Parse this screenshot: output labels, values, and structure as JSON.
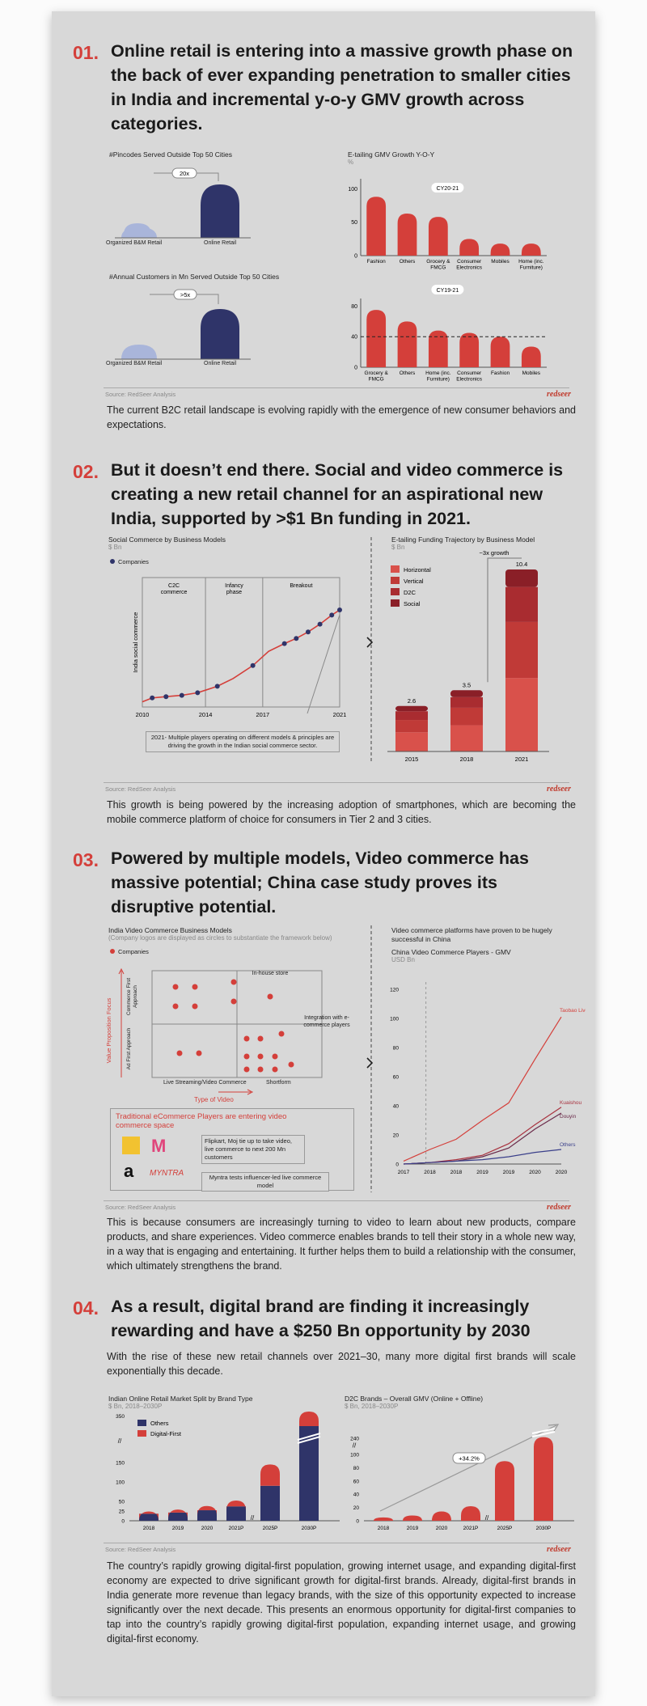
{
  "s1": {
    "num": "01.",
    "heading": "Online retail is entering into a massive growth phase on the back of ever expanding penetration to smaller cities in India and incremental y-o-y GMV growth across categories.",
    "pin_title": "#Pincodes Served Outside Top 50 Cities",
    "pin_mult": "20x",
    "cust_title": "#Annual Customers in Mn Served Outside Top 50 Cities",
    "cust_mult": ">5x",
    "lbl_bm": "Organized B&M Retail",
    "lbl_online": "Online Retail",
    "gmv_title": "E-tailing GMV Growth Y-O-Y",
    "gmv_unit": "%",
    "source": "Source: RedSeer Analysis",
    "brand": "redseer",
    "para": "The current B2C retail landscape is evolving rapidly with the emergence of new consumer behaviors and expectations."
  },
  "s2": {
    "num": "02.",
    "heading": "But it doesn’t end there. Social and video commerce is creating a new retail channel for an aspirational new India, supported by >$1 Bn funding in 2021.",
    "soc_title": "Social Commerce by Business Models",
    "soc_unit": "$ Bn",
    "legend": "Companies",
    "phase1": "C2C commerce",
    "phase2": "Infancy phase",
    "phase3": "Breakout",
    "yaxis": "India social commerce",
    "note": "2021- Multiple players operating on different models & principles are driving the growth in the Indian social commerce sector.",
    "fund_title": "E-tailing Funding Trajectory by Business Model",
    "fund_unit": "$ Bn",
    "growth": "~3x growth",
    "source": "Source: RedSeer Analysis",
    "brand": "redseer",
    "para": "This growth is being powered by the increasing adoption of smartphones, which are becoming the mobile commerce platform of choice for consumers in Tier 2 and 3 cities."
  },
  "s3": {
    "num": "03.",
    "heading": "Powered by multiple models, Video commerce has massive potential;  China case study proves its disruptive potential.",
    "vm_title": "India Video Commerce Business Models",
    "vm_sub": "(Company logos are  displayed  as circles to substantiate the framework below)",
    "legend": "Companies",
    "q_inhouse": "In-house store",
    "q_integ": "Integration with e-commerce players",
    "y_outer": "Value Proposition Focus",
    "y_top": "Commerce First Approach",
    "y_bot": "Ad First Approach",
    "x_left": "Live Streaming/Video Commerce",
    "x_right": "Shortform",
    "x_outer": "Type of Video",
    "trad_title": "Traditional eCommerce Players are entering video commerce space",
    "trad_n1": "Flipkart, Moj tie up to take video, live commerce to next 200 Mn customers",
    "trad_n2": "Myntra tests influencer-led live commerce model",
    "logo_m": "M",
    "logo_a": "a",
    "logo_myn": "MYNTRA",
    "cn_pre": "Video commerce platforms have proven to be hugely successful in China",
    "cn_title": "China Video Commerce Players - GMV",
    "cn_unit": "USD Bn",
    "source": "Source: RedSeer Analysis",
    "brand": "redseer",
    "para": "This is because consumers are increasingly turning to video to learn about new products, compare products, and share experiences. Video commerce enables brands to tell their story in a whole new way, in a way that is engaging and entertaining. It further helps them to build a relationship with the consumer, which ultimately strengthens the brand."
  },
  "s4": {
    "num": "04.",
    "heading": "As a result, digital brand are finding it increasingly rewarding and have a $250 Bn opportunity by 2030",
    "intro": "With the rise of these new retail channels over 2021–30, many more digital first brands will scale exponentially this decade.",
    "split_title": "Indian Online Retail Market Split by Brand Type",
    "split_unit": "$ Bn, 2018–2030P",
    "d2c_title": "D2C Brands – Overall GMV (Online + Offline)",
    "d2c_unit": "$ Bn, 2018–2030P",
    "cagr": "+34.2%",
    "source": "Source: RedSeer Analysis",
    "brand": "redseer",
    "para": "The country’s rapidly growing digital-first population, growing internet usage, and expanding digital-first economy are expected to drive significant growth for digital-first brands. Already, digital-first brands in India generate more revenue than legacy brands, with the size of this opportunity expected to increase significantly over the next decade. This presents an enormous opportunity for digital-first companies to tap into the country’s rapidly growing digital-first population, expanding internet usage, and growing digital-first economy."
  },
  "colors": {
    "red": "#d43f3a",
    "navy": "#2f3469",
    "lightblue": "#a9b5da"
  },
  "chart_data": [
    {
      "id": "gmv1",
      "type": "bar",
      "title": "E-tailing GMV Growth Y-O-Y",
      "ylabel": "%",
      "series_label": "CY20-21",
      "categories": [
        "Fashion",
        "Others",
        "Grocery & FMCG",
        "Consumer Electronics",
        "Mobiles",
        "Home (inc. Furniture)"
      ],
      "values": [
        88,
        63,
        58,
        25,
        18,
        18
      ],
      "yticks": [
        0,
        50,
        100
      ],
      "ylim": [
        0,
        115
      ]
    },
    {
      "id": "gmv2",
      "type": "bar",
      "series_label": "CY19-21",
      "categories": [
        "Grocery & FMCG",
        "Others",
        "Home (inc. Furniture)",
        "Consumer Electronics",
        "Fashion",
        "Mobiles"
      ],
      "values": [
        75,
        60,
        48,
        45,
        40,
        27
      ],
      "yticks": [
        0,
        40,
        80
      ],
      "ylim": [
        0,
        90
      ],
      "reference_line": 40
    },
    {
      "id": "social",
      "type": "line",
      "title": "Social Commerce by Business Models",
      "ylabel": "India social commerce",
      "xticks": [
        "2010",
        "2014",
        "2017",
        "2021"
      ],
      "phases": [
        "C2C commerce",
        "Infancy phase",
        "Breakout"
      ]
    },
    {
      "id": "funding",
      "type": "bar",
      "title": "E-tailing Funding Trajectory by Business Model",
      "ylabel": "$ Bn",
      "categories": [
        "2015",
        "2018",
        "2021"
      ],
      "totals": [
        2.6,
        3.5,
        10.4
      ],
      "series": [
        {
          "name": "Horizontal",
          "values": [
            1.1,
            1.5,
            4.2
          ]
        },
        {
          "name": "Vertical",
          "values": [
            0.7,
            1.0,
            3.2
          ]
        },
        {
          "name": "D2C",
          "values": [
            0.5,
            0.6,
            2.0
          ]
        },
        {
          "name": "Social",
          "values": [
            0.3,
            0.4,
            1.0
          ]
        }
      ],
      "annotation": "~3x growth"
    },
    {
      "id": "china",
      "type": "line",
      "title": "China Video Commerce Players - GMV",
      "ylabel": "USD Bn",
      "categories": [
        "2017",
        "2018",
        "2018",
        "2019",
        "2019",
        "2020",
        "2020"
      ],
      "yticks": [
        0,
        20,
        40,
        60,
        80,
        100,
        120
      ],
      "ylim": [
        0,
        125
      ],
      "series": [
        {
          "name": "Taobao Live",
          "values": [
            2,
            10,
            17,
            30,
            42,
            72,
            101
          ]
        },
        {
          "name": "Kuaishou",
          "values": [
            0,
            1,
            3,
            6,
            14,
            27,
            39
          ]
        },
        {
          "name": "Douyin",
          "values": [
            0,
            1,
            2,
            5,
            11,
            24,
            35
          ]
        },
        {
          "name": "Others",
          "values": [
            0,
            1,
            2,
            3,
            5,
            8,
            10
          ]
        }
      ]
    },
    {
      "id": "split",
      "type": "bar",
      "title": "Indian Online Retail Market Split by Brand Type",
      "ylabel": "$ Bn, 2018–2030P",
      "categories": [
        "2018",
        "2019",
        "2020",
        "2021P",
        "2025P",
        "2030P"
      ],
      "yticks": [
        0,
        25,
        50,
        100,
        150,
        350
      ],
      "series": [
        {
          "name": "Others",
          "values": [
            18,
            21,
            27,
            37,
            90,
            300
          ]
        },
        {
          "name": "Digital-First",
          "values": [
            6,
            8,
            11,
            15,
            55,
            60
          ]
        }
      ]
    },
    {
      "id": "d2c",
      "type": "bar",
      "title": "D2C Brands – Overall GMV (Online + Offline)",
      "ylabel": "$ Bn, 2018–2030P",
      "categories": [
        "2018",
        "2019",
        "2020",
        "2021P",
        "2025P",
        "2030P"
      ],
      "values": [
        5,
        8,
        14,
        22,
        90,
        250
      ],
      "yticks": [
        0,
        20,
        40,
        60,
        80,
        100,
        240
      ],
      "annotation": "+34.2%"
    }
  ]
}
